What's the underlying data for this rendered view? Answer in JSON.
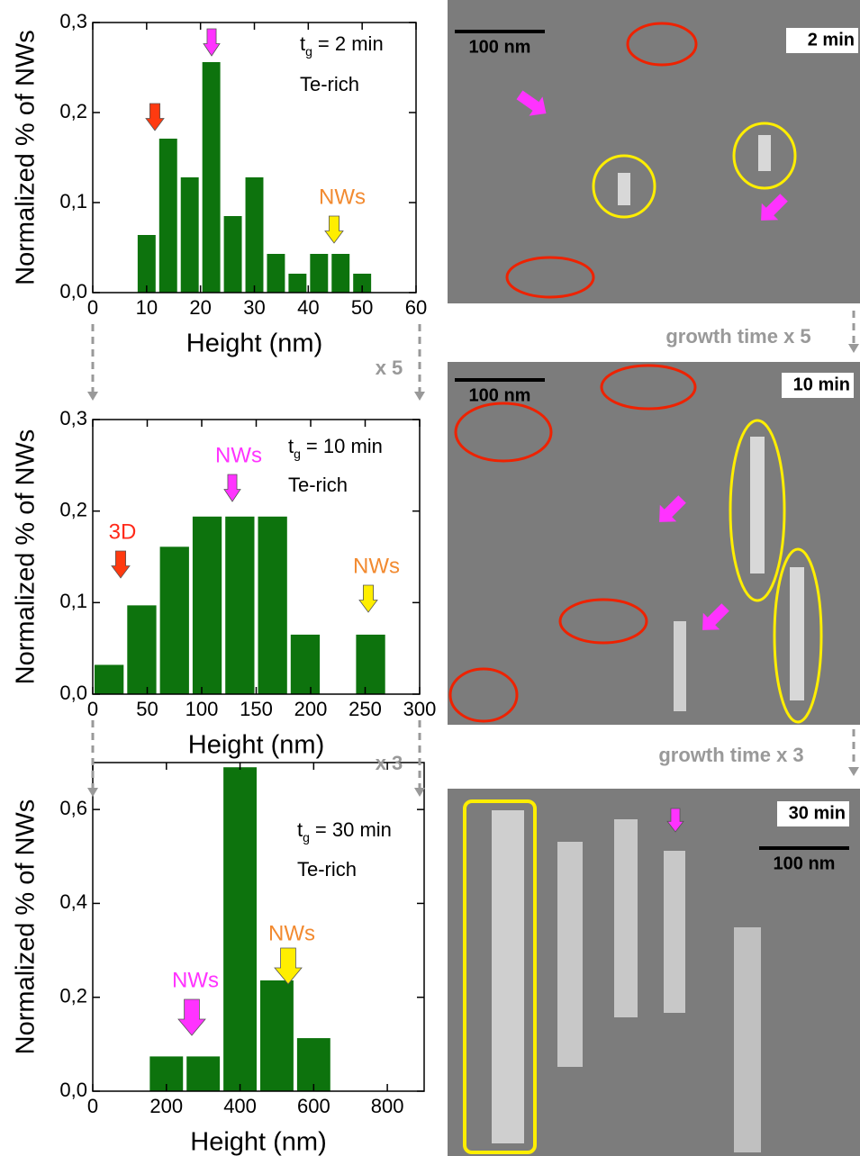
{
  "chart_data": [
    {
      "type": "histogram",
      "xlabel": "Height (nm)",
      "ylabel": "Normalized % of NWs",
      "bins": [
        8,
        12,
        16,
        20,
        24,
        28,
        32,
        36,
        40,
        44,
        48,
        52
      ],
      "values": [
        0.064,
        0.171,
        0.128,
        0.256,
        0.085,
        0.128,
        0.043,
        0.021,
        0.043,
        0.043,
        0.021
      ],
      "color": "#0d730d",
      "xlim": [
        0,
        60
      ],
      "xticks": [
        0,
        10,
        20,
        30,
        40,
        50,
        60
      ],
      "ylim": [
        0,
        0.3
      ],
      "yticks": [
        {
          "value": 0,
          "label": "0,0"
        },
        {
          "value": 0.1,
          "label": "0,1"
        },
        {
          "value": 0.2,
          "label": "0,2"
        },
        {
          "value": 0.3,
          "label": "0,3"
        }
      ],
      "time_label": {
        "symbol": "t",
        "subscript": "g",
        "rest": "= 2 min"
      },
      "condition": "Te-rich",
      "annotations": [
        {
          "text": "NWs",
          "color": "#f28a30"
        }
      ]
    },
    {
      "type": "histogram",
      "xlabel": "Height (nm)",
      "ylabel": "Normalized % of NWs",
      "bins": [
        0,
        30,
        60,
        90,
        120,
        150,
        180,
        210,
        240,
        270
      ],
      "values": [
        0.032,
        0.097,
        0.161,
        0.194,
        0.194,
        0.194,
        0.065,
        0,
        0.065
      ],
      "color": "#0d730d",
      "xlim": [
        0,
        300
      ],
      "xticks": [
        0,
        50,
        100,
        150,
        200,
        250,
        300
      ],
      "ylim": [
        0,
        0.3
      ],
      "yticks": [
        {
          "value": 0,
          "label": "0,0"
        },
        {
          "value": 0.1,
          "label": "0,1"
        },
        {
          "value": 0.2,
          "label": "0,2"
        },
        {
          "value": 0.3,
          "label": "0,3"
        }
      ],
      "time_label": {
        "symbol": "t",
        "subscript": "g",
        "rest": "= 10 min"
      },
      "condition": "Te-rich",
      "annotations": [
        {
          "text": "NWs",
          "color": "#ff33ff"
        },
        {
          "text": "3D",
          "color": "#ff2a1a"
        },
        {
          "text": "NWs",
          "color": "#f28a30"
        }
      ]
    },
    {
      "type": "histogram",
      "xlabel": "Height (nm)",
      "ylabel": "Normalized % of NWs",
      "bins": [
        150,
        250,
        350,
        450,
        550,
        650
      ],
      "values": [
        0.074,
        0.074,
        0.69,
        0.236,
        0.113
      ],
      "color": "#0d730d",
      "xlim": [
        0,
        900
      ],
      "xticks": [
        0,
        200,
        400,
        600,
        800
      ],
      "ylim": [
        0,
        0.7
      ],
      "yticks": [
        {
          "value": 0,
          "label": "0,0"
        },
        {
          "value": 0.2,
          "label": "0,2"
        },
        {
          "value": 0.4,
          "label": "0,4"
        },
        {
          "value": 0.6,
          "label": "0,6"
        }
      ],
      "time_label": {
        "symbol": "t",
        "subscript": "g",
        "rest": "= 30 min"
      },
      "condition": "Te-rich",
      "annotations": [
        {
          "text": "NWs",
          "color": "#f28a30"
        },
        {
          "text": "NWs",
          "color": "#ff33ff"
        }
      ]
    }
  ],
  "images": [
    {
      "time": "2 min",
      "scale_bar": "100 nm"
    },
    {
      "time": "10 min",
      "scale_bar": "100 nm"
    },
    {
      "time": "30 min",
      "scale_bar": "100 nm"
    }
  ],
  "transitions": [
    {
      "factor": "x 5",
      "note": "growth time x 5"
    },
    {
      "factor": "x 3",
      "note": "growth time x 3"
    }
  ]
}
